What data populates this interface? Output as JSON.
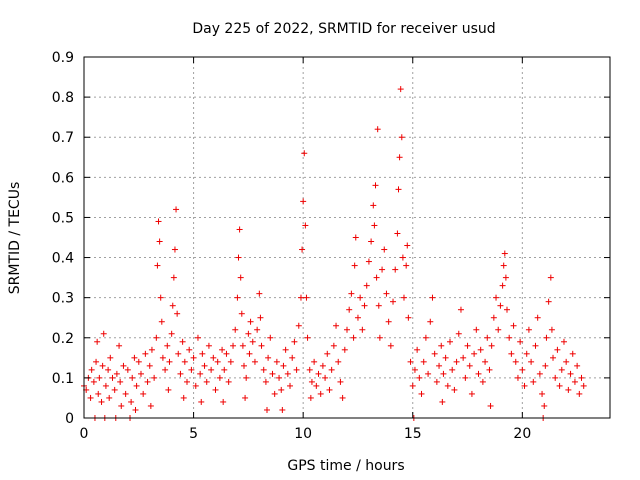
{
  "chart_data": {
    "type": "scatter",
    "title": "Day 225 of 2022, SRMTID for receiver usud",
    "xlabel": "GPS time / hours",
    "ylabel": "SRMTID / TECUs",
    "xlim": [
      0,
      24
    ],
    "ylim": [
      0,
      0.9
    ],
    "x_ticks": [
      0,
      5,
      10,
      15,
      20
    ],
    "x_tick_labels": [
      "0",
      "5",
      "10",
      "15",
      "20"
    ],
    "y_ticks": [
      0,
      0.1,
      0.2,
      0.3,
      0.4,
      0.5,
      0.6,
      0.7,
      0.8,
      0.9
    ],
    "y_tick_labels": [
      "0",
      "0.1",
      "0.2",
      "0.3",
      "0.4",
      "0.5",
      "0.6",
      "0.7",
      "0.8",
      "0.9"
    ],
    "grid": true,
    "marker": "+",
    "color": "#ee0000",
    "series": [
      {
        "name": "SRMTID",
        "points": [
          [
            0.0,
            0.08
          ],
          [
            0.1,
            0.07
          ],
          [
            0.2,
            0.1
          ],
          [
            0.3,
            0.05
          ],
          [
            0.35,
            0.12
          ],
          [
            0.45,
            0.09
          ],
          [
            0.5,
            0.0
          ],
          [
            0.55,
            0.14
          ],
          [
            0.6,
            0.19
          ],
          [
            0.65,
            0.06
          ],
          [
            0.7,
            0.1
          ],
          [
            0.8,
            0.04
          ],
          [
            0.85,
            0.13
          ],
          [
            0.9,
            0.21
          ],
          [
            0.95,
            0.0
          ],
          [
            1.0,
            0.08
          ],
          [
            1.1,
            0.12
          ],
          [
            1.15,
            0.05
          ],
          [
            1.2,
            0.15
          ],
          [
            1.3,
            0.1
          ],
          [
            1.4,
            0.07
          ],
          [
            1.45,
            0.0
          ],
          [
            1.5,
            0.11
          ],
          [
            1.6,
            0.18
          ],
          [
            1.65,
            0.09
          ],
          [
            1.7,
            0.03
          ],
          [
            1.8,
            0.13
          ],
          [
            1.9,
            0.06
          ],
          [
            2.0,
            0.12
          ],
          [
            2.1,
            0.0
          ],
          [
            2.15,
            0.04
          ],
          [
            2.2,
            0.1
          ],
          [
            2.3,
            0.15
          ],
          [
            2.35,
            0.02
          ],
          [
            2.4,
            0.08
          ],
          [
            2.5,
            0.14
          ],
          [
            2.6,
            0.11
          ],
          [
            2.7,
            0.06
          ],
          [
            2.8,
            0.16
          ],
          [
            2.9,
            0.09
          ],
          [
            3.0,
            0.13
          ],
          [
            3.05,
            0.03
          ],
          [
            3.1,
            0.17
          ],
          [
            3.2,
            0.1
          ],
          [
            3.3,
            0.2
          ],
          [
            3.35,
            0.38
          ],
          [
            3.4,
            0.49
          ],
          [
            3.45,
            0.44
          ],
          [
            3.5,
            0.3
          ],
          [
            3.55,
            0.24
          ],
          [
            3.6,
            0.15
          ],
          [
            3.7,
            0.12
          ],
          [
            3.8,
            0.18
          ],
          [
            3.85,
            0.07
          ],
          [
            3.9,
            0.14
          ],
          [
            4.0,
            0.21
          ],
          [
            4.05,
            0.28
          ],
          [
            4.1,
            0.35
          ],
          [
            4.15,
            0.42
          ],
          [
            4.2,
            0.52
          ],
          [
            4.25,
            0.26
          ],
          [
            4.3,
            0.16
          ],
          [
            4.4,
            0.11
          ],
          [
            4.5,
            0.19
          ],
          [
            4.55,
            0.05
          ],
          [
            4.6,
            0.14
          ],
          [
            4.7,
            0.09
          ],
          [
            4.8,
            0.17
          ],
          [
            4.9,
            0.12
          ],
          [
            5.0,
            0.15
          ],
          [
            5.1,
            0.08
          ],
          [
            5.2,
            0.2
          ],
          [
            5.3,
            0.11
          ],
          [
            5.35,
            0.04
          ],
          [
            5.4,
            0.16
          ],
          [
            5.5,
            0.13
          ],
          [
            5.6,
            0.09
          ],
          [
            5.7,
            0.18
          ],
          [
            5.8,
            0.12
          ],
          [
            5.9,
            0.15
          ],
          [
            6.0,
            0.07
          ],
          [
            6.1,
            0.14
          ],
          [
            6.2,
            0.1
          ],
          [
            6.3,
            0.17
          ],
          [
            6.35,
            0.04
          ],
          [
            6.4,
            0.12
          ],
          [
            6.5,
            0.16
          ],
          [
            6.6,
            0.09
          ],
          [
            6.7,
            0.14
          ],
          [
            6.8,
            0.18
          ],
          [
            6.9,
            0.22
          ],
          [
            7.0,
            0.3
          ],
          [
            7.05,
            0.4
          ],
          [
            7.1,
            0.47
          ],
          [
            7.15,
            0.35
          ],
          [
            7.2,
            0.26
          ],
          [
            7.25,
            0.18
          ],
          [
            7.3,
            0.13
          ],
          [
            7.35,
            0.05
          ],
          [
            7.4,
            0.1
          ],
          [
            7.5,
            0.21
          ],
          [
            7.55,
            0.16
          ],
          [
            7.6,
            0.24
          ],
          [
            7.7,
            0.19
          ],
          [
            7.8,
            0.14
          ],
          [
            7.9,
            0.22
          ],
          [
            8.0,
            0.31
          ],
          [
            8.05,
            0.25
          ],
          [
            8.1,
            0.18
          ],
          [
            8.2,
            0.12
          ],
          [
            8.3,
            0.09
          ],
          [
            8.35,
            0.02
          ],
          [
            8.4,
            0.15
          ],
          [
            8.5,
            0.2
          ],
          [
            8.6,
            0.11
          ],
          [
            8.7,
            0.06
          ],
          [
            8.8,
            0.14
          ],
          [
            8.9,
            0.1
          ],
          [
            9.0,
            0.07
          ],
          [
            9.05,
            0.02
          ],
          [
            9.1,
            0.13
          ],
          [
            9.2,
            0.17
          ],
          [
            9.3,
            0.11
          ],
          [
            9.4,
            0.08
          ],
          [
            9.5,
            0.15
          ],
          [
            9.6,
            0.19
          ],
          [
            9.7,
            0.12
          ],
          [
            9.8,
            0.23
          ],
          [
            9.9,
            0.3
          ],
          [
            9.95,
            0.42
          ],
          [
            10.0,
            0.54
          ],
          [
            10.05,
            0.66
          ],
          [
            10.1,
            0.48
          ],
          [
            10.15,
            0.3
          ],
          [
            10.2,
            0.2
          ],
          [
            10.3,
            0.12
          ],
          [
            10.35,
            0.05
          ],
          [
            10.4,
            0.09
          ],
          [
            10.5,
            0.14
          ],
          [
            10.6,
            0.08
          ],
          [
            10.7,
            0.11
          ],
          [
            10.8,
            0.06
          ],
          [
            10.9,
            0.13
          ],
          [
            11.0,
            0.1
          ],
          [
            11.1,
            0.16
          ],
          [
            11.2,
            0.07
          ],
          [
            11.3,
            0.12
          ],
          [
            11.4,
            0.18
          ],
          [
            11.5,
            0.23
          ],
          [
            11.6,
            0.14
          ],
          [
            11.7,
            0.09
          ],
          [
            11.8,
            0.05
          ],
          [
            11.9,
            0.17
          ],
          [
            12.0,
            0.22
          ],
          [
            12.1,
            0.27
          ],
          [
            12.2,
            0.31
          ],
          [
            12.3,
            0.2
          ],
          [
            12.35,
            0.38
          ],
          [
            12.4,
            0.45
          ],
          [
            12.5,
            0.25
          ],
          [
            12.6,
            0.3
          ],
          [
            12.7,
            0.22
          ],
          [
            12.8,
            0.28
          ],
          [
            12.9,
            0.33
          ],
          [
            13.0,
            0.39
          ],
          [
            13.1,
            0.44
          ],
          [
            13.2,
            0.53
          ],
          [
            13.25,
            0.48
          ],
          [
            13.3,
            0.58
          ],
          [
            13.35,
            0.35
          ],
          [
            13.4,
            0.72
          ],
          [
            13.45,
            0.28
          ],
          [
            13.5,
            0.2
          ],
          [
            13.6,
            0.37
          ],
          [
            13.7,
            0.42
          ],
          [
            13.8,
            0.31
          ],
          [
            13.9,
            0.24
          ],
          [
            14.0,
            0.18
          ],
          [
            14.1,
            0.29
          ],
          [
            14.2,
            0.37
          ],
          [
            14.3,
            0.46
          ],
          [
            14.35,
            0.57
          ],
          [
            14.4,
            0.65
          ],
          [
            14.45,
            0.82
          ],
          [
            14.5,
            0.7
          ],
          [
            14.55,
            0.4
          ],
          [
            14.6,
            0.3
          ],
          [
            14.7,
            0.38
          ],
          [
            14.75,
            0.43
          ],
          [
            14.8,
            0.25
          ],
          [
            14.9,
            0.14
          ],
          [
            15.0,
            0.08
          ],
          [
            15.05,
            0.0
          ],
          [
            15.1,
            0.12
          ],
          [
            15.2,
            0.17
          ],
          [
            15.3,
            0.1
          ],
          [
            15.4,
            0.06
          ],
          [
            15.5,
            0.14
          ],
          [
            15.6,
            0.2
          ],
          [
            15.7,
            0.11
          ],
          [
            15.8,
            0.24
          ],
          [
            15.9,
            0.3
          ],
          [
            16.0,
            0.16
          ],
          [
            16.1,
            0.09
          ],
          [
            16.2,
            0.13
          ],
          [
            16.3,
            0.18
          ],
          [
            16.35,
            0.04
          ],
          [
            16.4,
            0.11
          ],
          [
            16.5,
            0.15
          ],
          [
            16.6,
            0.08
          ],
          [
            16.7,
            0.19
          ],
          [
            16.8,
            0.12
          ],
          [
            16.9,
            0.07
          ],
          [
            17.0,
            0.14
          ],
          [
            17.1,
            0.21
          ],
          [
            17.2,
            0.27
          ],
          [
            17.3,
            0.15
          ],
          [
            17.4,
            0.1
          ],
          [
            17.5,
            0.18
          ],
          [
            17.6,
            0.13
          ],
          [
            17.7,
            0.06
          ],
          [
            17.8,
            0.16
          ],
          [
            17.9,
            0.22
          ],
          [
            18.0,
            0.11
          ],
          [
            18.1,
            0.17
          ],
          [
            18.2,
            0.09
          ],
          [
            18.3,
            0.14
          ],
          [
            18.4,
            0.2
          ],
          [
            18.5,
            0.12
          ],
          [
            18.55,
            0.03
          ],
          [
            18.6,
            0.18
          ],
          [
            18.7,
            0.25
          ],
          [
            18.8,
            0.3
          ],
          [
            18.9,
            0.22
          ],
          [
            19.0,
            0.28
          ],
          [
            19.1,
            0.33
          ],
          [
            19.15,
            0.38
          ],
          [
            19.2,
            0.41
          ],
          [
            19.25,
            0.35
          ],
          [
            19.3,
            0.27
          ],
          [
            19.4,
            0.2
          ],
          [
            19.5,
            0.16
          ],
          [
            19.6,
            0.23
          ],
          [
            19.7,
            0.14
          ],
          [
            19.8,
            0.1
          ],
          [
            19.9,
            0.19
          ],
          [
            20.0,
            0.12
          ],
          [
            20.1,
            0.08
          ],
          [
            20.2,
            0.16
          ],
          [
            20.3,
            0.22
          ],
          [
            20.4,
            0.14
          ],
          [
            20.5,
            0.09
          ],
          [
            20.6,
            0.18
          ],
          [
            20.7,
            0.25
          ],
          [
            20.8,
            0.11
          ],
          [
            20.9,
            0.06
          ],
          [
            20.95,
            0.0
          ],
          [
            21.0,
            0.03
          ],
          [
            21.05,
            0.13
          ],
          [
            21.1,
            0.2
          ],
          [
            21.2,
            0.29
          ],
          [
            21.3,
            0.35
          ],
          [
            21.35,
            0.22
          ],
          [
            21.4,
            0.15
          ],
          [
            21.5,
            0.1
          ],
          [
            21.6,
            0.17
          ],
          [
            21.7,
            0.08
          ],
          [
            21.8,
            0.12
          ],
          [
            21.9,
            0.19
          ],
          [
            22.0,
            0.14
          ],
          [
            22.1,
            0.07
          ],
          [
            22.2,
            0.11
          ],
          [
            22.3,
            0.16
          ],
          [
            22.4,
            0.09
          ],
          [
            22.5,
            0.13
          ],
          [
            22.6,
            0.06
          ],
          [
            22.7,
            0.1
          ],
          [
            22.8,
            0.08
          ]
        ]
      }
    ]
  }
}
